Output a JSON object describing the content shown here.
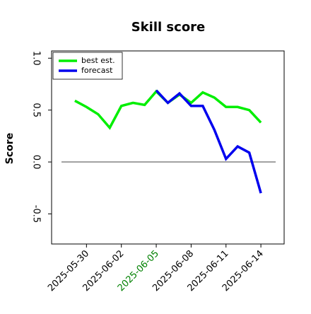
{
  "chart_data": {
    "type": "line",
    "title": "Skill score",
    "ylabel": "Score",
    "x": [
      "2025-05-29",
      "2025-05-30",
      "2025-05-31",
      "2025-06-01",
      "2025-06-02",
      "2025-06-03",
      "2025-06-04",
      "2025-06-05",
      "2025-06-06",
      "2025-06-07",
      "2025-06-08",
      "2025-06-09",
      "2025-06-10",
      "2025-06-11",
      "2025-06-12",
      "2025-06-13",
      "2025-06-14"
    ],
    "series": [
      {
        "name": "best est.",
        "color": "#00ee00",
        "values": [
          0.59,
          0.53,
          0.46,
          0.33,
          0.54,
          0.57,
          0.55,
          0.68,
          0.57,
          0.65,
          0.57,
          0.67,
          0.62,
          0.53,
          0.53,
          0.5,
          0.38
        ]
      },
      {
        "name": "forecast",
        "color": "#0000ee",
        "values": [
          null,
          null,
          null,
          null,
          null,
          null,
          null,
          0.69,
          0.57,
          0.66,
          0.54,
          0.54,
          0.31,
          0.03,
          0.15,
          0.09,
          -0.3
        ]
      }
    ],
    "xlim": [
      "2025-05-27",
      "2025-06-16"
    ],
    "xticks": [
      "2025-05-30",
      "2025-06-02",
      "2025-06-05",
      "2025-06-08",
      "2025-06-11",
      "2025-06-14"
    ],
    "highlight_xtick_index": 2,
    "highlight_color": "green",
    "ylim": [
      -0.79,
      1.07
    ],
    "yticks": [
      {
        "value": -0.5,
        "label": "-0.5"
      },
      {
        "value": 0,
        "label": "0.0"
      },
      {
        "value": 0.5,
        "label": "0.5"
      },
      {
        "value": 1,
        "label": "1.0"
      }
    ],
    "hline": 0,
    "legend": "upper left",
    "grid": false
  }
}
